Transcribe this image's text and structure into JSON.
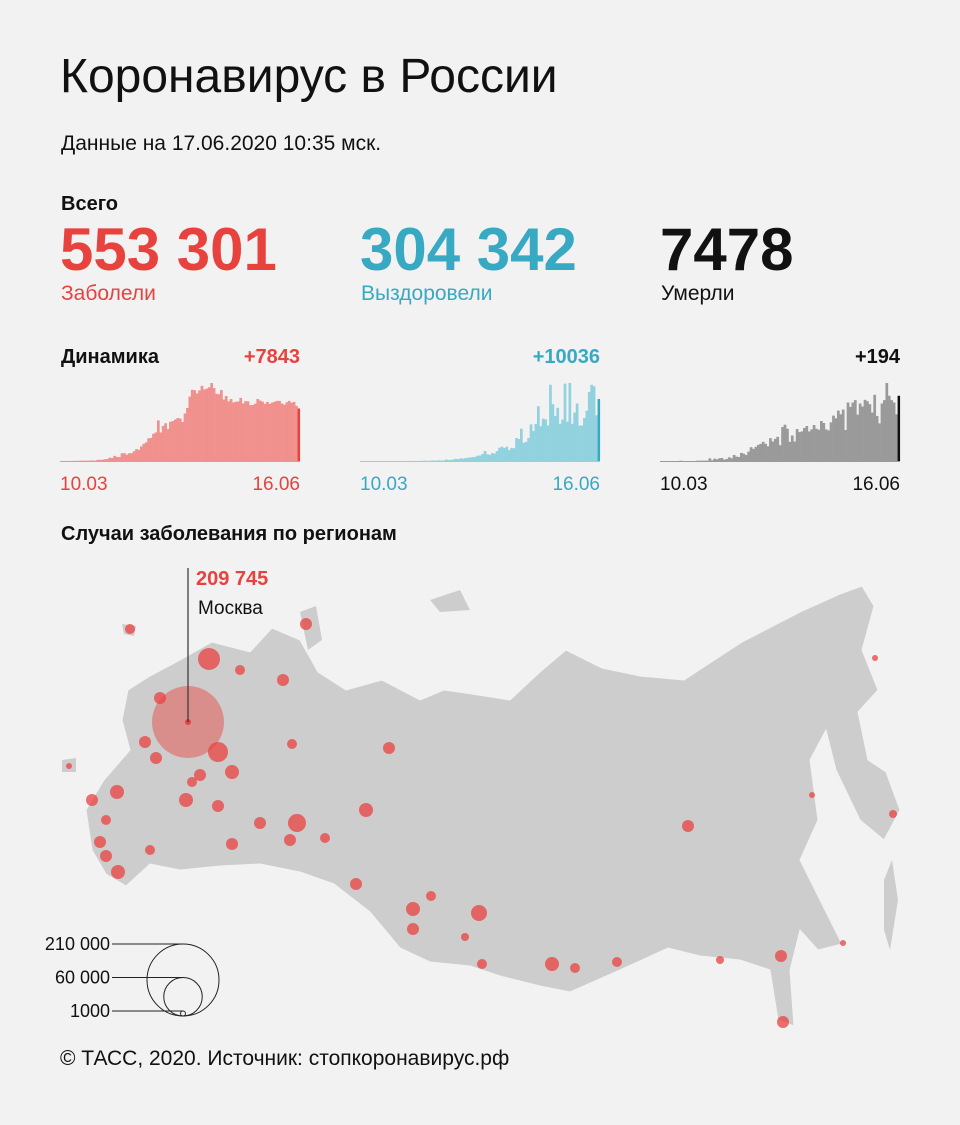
{
  "title": "Коронавирус в России",
  "subtitle": "Данные на 17.06.2020 10:35 мск.",
  "totals": {
    "label": "Всего",
    "items": [
      {
        "value": "553 301",
        "label": "Заболели",
        "color": "#e8423f"
      },
      {
        "value": "304 342",
        "label": "Выздоровели",
        "color": "#38a9c2"
      },
      {
        "value": "7478",
        "label": "Умерли",
        "color": "#111111"
      }
    ]
  },
  "dynamics": {
    "label": "Динамика",
    "charts": [
      {
        "delta": "+7843",
        "start": "10.03",
        "end": "16.06",
        "color": "#e8423f",
        "bar_color": "#f0918e",
        "values": [
          3,
          8,
          8,
          6,
          11,
          15,
          30,
          22,
          52,
          53,
          54,
          53,
          62,
          71,
          57,
          163,
          182,
          196,
          270,
          302,
          500,
          440,
          771,
          601,
          582,
          1154,
          1175,
          954,
          1154,
          1175,
          1459,
          1786,
          1667,
          2186,
          2558,
          2774,
          3388,
          3448,
          4070,
          4268,
          6060,
          4268,
          5236,
          5642,
          4774,
          5849,
          5966,
          6198,
          6411,
          6361,
          5841,
          7099,
          7933,
          9623,
          10633,
          10581,
          10102,
          10559,
          11231,
          10699,
          10817,
          11012,
          11656,
          10899,
          10028,
          9974,
          10598,
          9200,
          9709,
          8926,
          9263,
          8764,
          8849,
          8894,
          9434,
          8599,
          8946,
          8915,
          8338,
          8371,
          8572,
          9268,
          9035,
          8863,
          8536,
          8831,
          8529,
          8726,
          8855,
          8984,
          8985,
          8595,
          8404,
          8779,
          8987,
          8706,
          8835,
          8246,
          7843
        ]
      },
      {
        "delta": "+10036",
        "start": "10.03",
        "end": "16.06",
        "color": "#38a9c2",
        "bar_color": "#92d2df",
        "values": [
          0,
          0,
          0,
          0,
          0,
          0,
          1,
          2,
          0,
          1,
          0,
          2,
          3,
          4,
          0,
          1,
          6,
          2,
          3,
          4,
          16,
          0,
          21,
          2,
          23,
          22,
          45,
          27,
          39,
          60,
          78,
          52,
          100,
          71,
          96,
          224,
          139,
          180,
          236,
          348,
          297,
          423,
          375,
          473,
          532,
          563,
          624,
          673,
          853,
          878,
          1140,
          1626,
          1104,
          983,
          1283,
          1214,
          1592,
          2143,
          2315,
          2097,
          2322,
          1776,
          2119,
          2066,
          3711,
          3564,
          5216,
          2943,
          3089,
          3716,
          5926,
          4838,
          5986,
          8862,
          5620,
          6853,
          6736,
          5738,
          12338,
          9181,
          7283,
          8599,
          6011,
          6698,
          12500,
          6350,
          12616,
          6011,
          7831,
          9295,
          5731,
          5744,
          6952,
          8130,
          11151,
          12326,
          12089,
          7398,
          10036
        ]
      },
      {
        "delta": "+194",
        "start": "10.03",
        "end": "16.06",
        "color": "#111111",
        "bar_color": "#9a9a9a",
        "values": [
          0,
          0,
          0,
          0,
          0,
          0,
          0,
          0,
          1,
          0,
          0,
          0,
          0,
          0,
          0,
          1,
          1,
          1,
          1,
          1,
          8,
          2,
          7,
          5,
          8,
          9,
          4,
          6,
          11,
          8,
          18,
          13,
          12,
          24,
          22,
          18,
          28,
          41,
          36,
          42,
          48,
          51,
          57,
          51,
          44,
          68,
          58,
          66,
          72,
          47,
          101,
          108,
          96,
          57,
          76,
          58,
          95,
          86,
          88,
          98,
          104,
          88,
          94,
          107,
          96,
          93,
          119,
          113,
          94,
          91,
          115,
          135,
          127,
          150,
          139,
          153,
          92,
          174,
          161,
          174,
          181,
          138,
          171,
          162,
          182,
          178,
          169,
          144,
          197,
          134,
          112,
          171,
          181,
          232,
          194,
          181,
          174,
          139,
          194
        ]
      }
    ]
  },
  "map": {
    "title": "Случаи заболевания по регионам",
    "moscow": {
      "value": 209745,
      "value_label": "209 745",
      "name": "Москва"
    },
    "legend": [
      {
        "value": 210000,
        "label": "210 000"
      },
      {
        "value": 60000,
        "label": "60 000"
      },
      {
        "value": 1000,
        "label": "1000"
      }
    ]
  },
  "footer": "© ТАСС, 2020. Источник: стопкоронавирус.рф"
}
